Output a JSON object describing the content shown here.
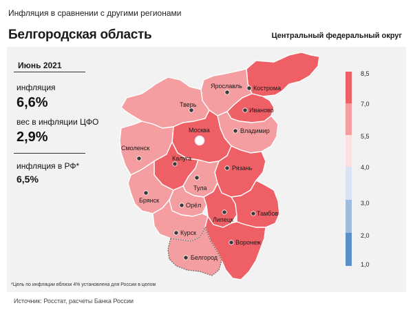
{
  "header": {
    "subtitle": "Инфляция в сравнении с другими регионами",
    "title": "Белгородская область",
    "district": "Центральный федеральный округ"
  },
  "stats": {
    "month": "Июнь 2021",
    "inflation_label": "инфляция",
    "inflation_value": "6,6%",
    "weight_label": "вес в инфляции ЦФО",
    "weight_value": "2,9%",
    "rf_label": "инфляция  в РФ*",
    "rf_value": "6,5%"
  },
  "legend": {
    "ticks": [
      "8,5",
      "7,0",
      "5,5",
      "4,0",
      "3,0",
      "2,0",
      "1,0"
    ],
    "bins": [
      {
        "from": 7.0,
        "to": 8.5,
        "color": "#ef5f66"
      },
      {
        "from": 5.5,
        "to": 7.0,
        "color": "#f59ea1"
      },
      {
        "from": 4.0,
        "to": 5.5,
        "color": "#fbe0e1"
      },
      {
        "from": 3.0,
        "to": 4.0,
        "color": "#d9e3f1"
      },
      {
        "from": 2.0,
        "to": 3.0,
        "color": "#9dbbdc"
      },
      {
        "from": 1.0,
        "to": 2.0,
        "color": "#5b8fc8"
      }
    ]
  },
  "regions": [
    {
      "name": "Ярославль",
      "fill": "#f59ea1"
    },
    {
      "name": "Кострома",
      "fill": "#ef5f66"
    },
    {
      "name": "Тверь",
      "fill": "#f59ea1"
    },
    {
      "name": "Иваново",
      "fill": "#ef5f66"
    },
    {
      "name": "Москва",
      "fill": "#ef5f66"
    },
    {
      "name": "Владимир",
      "fill": "#f59ea1"
    },
    {
      "name": "Смоленск",
      "fill": "#f59ea1"
    },
    {
      "name": "Калуга",
      "fill": "#ef5f66"
    },
    {
      "name": "Рязань",
      "fill": "#ef5f66"
    },
    {
      "name": "Тула",
      "fill": "#f59ea1"
    },
    {
      "name": "Брянск",
      "fill": "#f59ea1"
    },
    {
      "name": "Орёл",
      "fill": "#f59ea1"
    },
    {
      "name": "Липецк",
      "fill": "#ef5f66"
    },
    {
      "name": "Тамбов",
      "fill": "#ef5f66"
    },
    {
      "name": "Курск",
      "fill": "#f59ea1"
    },
    {
      "name": "Воронеж",
      "fill": "#ef5f66"
    },
    {
      "name": "Белгород",
      "fill": "#f59ea1"
    }
  ],
  "highlight": "Белгород",
  "footnote": "*Цель по инфляции  вблизи 4% установлена для России в целом",
  "source": "Источник: Росстат, расчеты Банка России"
}
